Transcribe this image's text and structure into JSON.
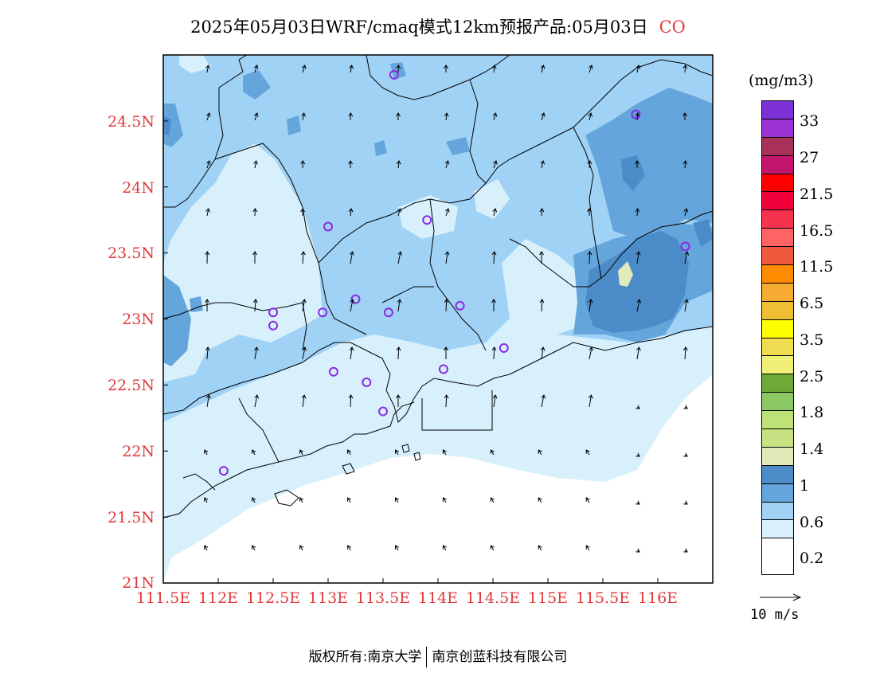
{
  "title": {
    "text": "2025年05月03日WRF/cmaq模式12km预报产品:05月03日",
    "pollutant": "CO"
  },
  "map": {
    "lat_ticks": [
      "24.5N",
      "24N",
      "23.5N",
      "23N",
      "22.5N",
      "22N",
      "21.5N",
      "21N"
    ],
    "lon_ticks": [
      "111.5E",
      "112E",
      "112.5E",
      "113E",
      "113.5E",
      "114E",
      "114.5E",
      "115E",
      "115.5E",
      "116E"
    ],
    "lon_range": [
      111.5,
      116.5
    ],
    "lat_range": [
      21.0,
      25.0
    ],
    "station_markers": [
      [
        113.6,
        24.85
      ],
      [
        112.5,
        23.05
      ],
      [
        112.5,
        22.95
      ],
      [
        113.0,
        23.7
      ],
      [
        112.95,
        23.05
      ],
      [
        113.25,
        23.15
      ],
      [
        113.55,
        23.05
      ],
      [
        114.2,
        23.1
      ],
      [
        113.9,
        23.75
      ],
      [
        113.05,
        22.6
      ],
      [
        113.35,
        22.52
      ],
      [
        114.05,
        22.62
      ],
      [
        113.5,
        22.3
      ],
      [
        114.6,
        22.78
      ],
      [
        115.8,
        24.55
      ],
      [
        116.25,
        23.55
      ],
      [
        112.05,
        21.85
      ]
    ],
    "wind_field": "southerly, weakening offshore"
  },
  "legend": {
    "unit": "(mg/m3)",
    "colors": [
      "#7d32d8",
      "#9b33d3",
      "#a8305a",
      "#c2166e",
      "#ff0000",
      "#f2003c",
      "#f7324f",
      "#ff6464",
      "#f05a3c",
      "#ff8c00",
      "#f5aa32",
      "#f0be32",
      "#ffff00",
      "#f0dc50",
      "#f0f078",
      "#6eaa37",
      "#8cc864",
      "#bee178",
      "#c8e182",
      "#e1ebb9",
      "#4b8cc8",
      "#64a5dc",
      "#a0d2f5",
      "#d7f0fb",
      "#ffffff"
    ],
    "labels": [
      "33",
      "27",
      "21.5",
      "16.5",
      "11.5",
      "6.5",
      "3.5",
      "2.5",
      "1.8",
      "1.4",
      "1",
      "0.6",
      "0.2"
    ],
    "vector_label": "10  m/s"
  },
  "footer": {
    "left": "版权所有:南京大学",
    "right": "南京创蓝科技有限公司"
  }
}
